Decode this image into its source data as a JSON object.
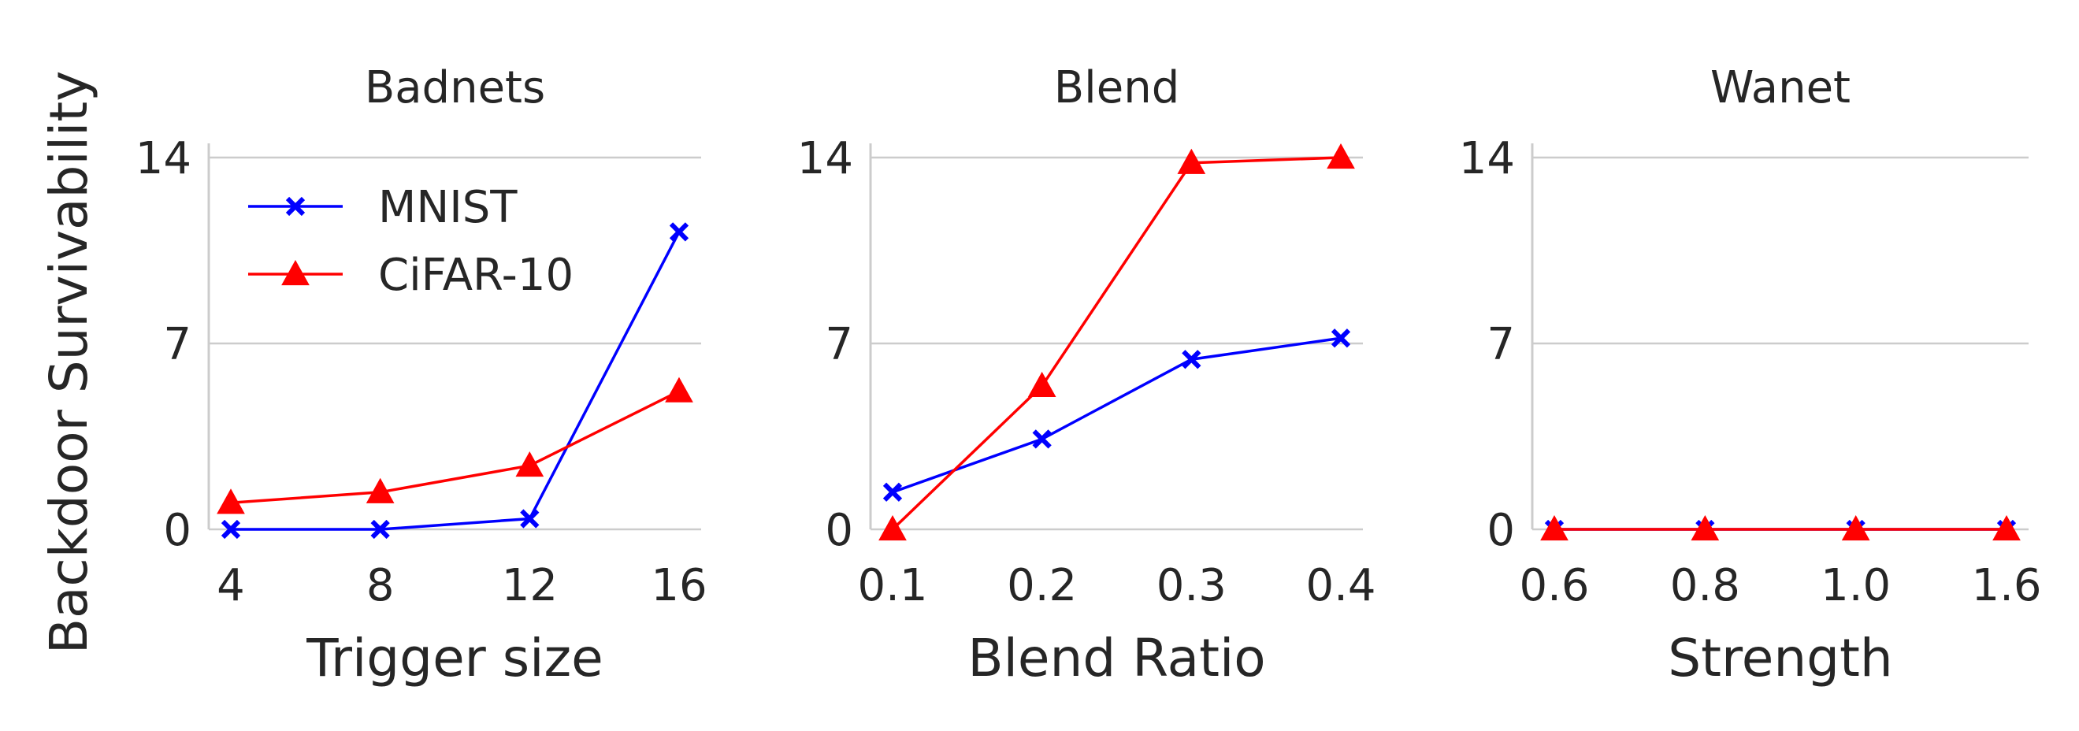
{
  "ylabel": "Backdoor Survivability",
  "colors": {
    "MNIST": "#0000ff",
    "CiFAR-10": "#ff0000"
  },
  "legend": {
    "placement": "top-left of first panel",
    "entries": [
      {
        "label": "MNIST",
        "marker": "x",
        "color": "#0000ff"
      },
      {
        "label": "CiFAR-10",
        "marker": "triangle",
        "color": "#ff0000"
      }
    ]
  },
  "chart_data": [
    {
      "type": "line",
      "title": "Badnets",
      "xlabel": "Trigger size",
      "ylabel": "Backdoor Survivability",
      "categories": [
        "4",
        "8",
        "12",
        "16"
      ],
      "ylim": [
        0,
        14
      ],
      "yticks": [
        0,
        7,
        14
      ],
      "grid": "horizontal",
      "series": [
        {
          "name": "MNIST",
          "values": [
            0.0,
            0.0,
            0.4,
            11.2
          ]
        },
        {
          "name": "CiFAR-10",
          "values": [
            1.0,
            1.4,
            2.4,
            5.2
          ]
        }
      ]
    },
    {
      "type": "line",
      "title": "Blend",
      "xlabel": "Blend Ratio",
      "categories": [
        "0.1",
        "0.2",
        "0.3",
        "0.4"
      ],
      "ylim": [
        0,
        14
      ],
      "yticks": [
        0,
        7,
        14
      ],
      "grid": "horizontal",
      "series": [
        {
          "name": "MNIST",
          "values": [
            1.4,
            3.4,
            6.4,
            7.2
          ]
        },
        {
          "name": "CiFAR-10",
          "values": [
            0.0,
            5.4,
            13.8,
            14.0
          ]
        }
      ]
    },
    {
      "type": "line",
      "title": "Wanet",
      "xlabel": "Strength",
      "categories": [
        "0.6",
        "0.8",
        "1.0",
        "1.6"
      ],
      "ylim": [
        0,
        14
      ],
      "yticks": [
        0,
        7,
        14
      ],
      "grid": "horizontal",
      "series": [
        {
          "name": "MNIST",
          "values": [
            0,
            0,
            0,
            0
          ]
        },
        {
          "name": "CiFAR-10",
          "values": [
            0,
            0,
            0,
            0
          ]
        }
      ]
    }
  ]
}
